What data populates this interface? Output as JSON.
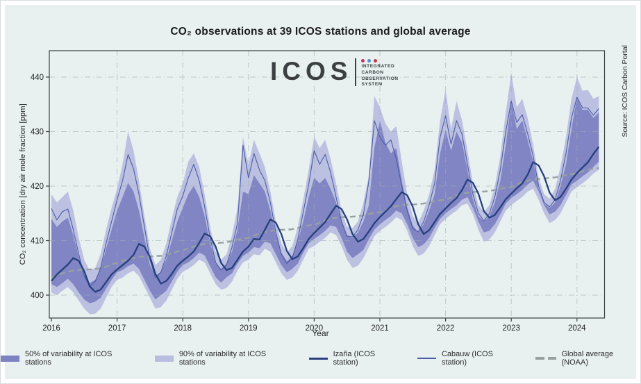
{
  "page": {
    "source_note": "Source: ICOS Carbon Portal"
  },
  "logo": {
    "text": "ICOS",
    "subtitle": "INTEGRATED CARBON OBSERVATION SYSTEM",
    "dots": [
      "#c6326e",
      "#4e8fca",
      "#c23a41"
    ]
  },
  "colors": {
    "panel_bg": "#e8f0f0",
    "grid": "#9fadb0",
    "plot_border": "#3a3f42",
    "tick_text": "#1f1f1f"
  },
  "chart_data": {
    "type": "line",
    "title": "CO₂ observations at 39 ICOS stations and global average",
    "xlabel": "Year",
    "ylabel": "CO₂ concentration [dry air mole fraction [ppm]",
    "x_start_year": 2016,
    "x_interval": "monthly",
    "n_points": 101,
    "x_ticks": [
      2016,
      2017,
      2018,
      2019,
      2020,
      2021,
      2022,
      2023,
      2024
    ],
    "y_ticks": [
      400,
      410,
      420,
      430,
      440
    ],
    "xlim": [
      2015.97,
      2024.42
    ],
    "ylim": [
      395.8,
      444.8
    ],
    "grid": true,
    "legend_position": "bottom",
    "series": [
      {
        "name": "90% of variability at ICOS stations",
        "type": "band",
        "color": "#b9bedf",
        "low": [
          400.5,
          400.0,
          400.8,
          401.5,
          400.5,
          399.0,
          397.5,
          396.5,
          396.6,
          397.5,
          399.5,
          401.5,
          402.8,
          403.2,
          404.0,
          404.5,
          403.5,
          401.5,
          399.5,
          397.5,
          397.8,
          399.0,
          401.0,
          403.0,
          404.3,
          404.8,
          405.5,
          406.5,
          406.0,
          404.0,
          402.0,
          401.0,
          401.3,
          402.5,
          404.5,
          406.0,
          406.5,
          407.5,
          407.3,
          408.5,
          408.0,
          406.0,
          404.0,
          402.8,
          403.2,
          404.5,
          406.5,
          408.5,
          409.0,
          409.8,
          410.5,
          411.5,
          411.0,
          409.0,
          406.5,
          405.0,
          405.4,
          406.8,
          408.8,
          410.8,
          411.8,
          412.5,
          413.3,
          414.3,
          413.8,
          411.8,
          409.0,
          407.2,
          407.6,
          409.0,
          411.0,
          413.0,
          414.0,
          414.8,
          415.5,
          416.5,
          416.8,
          414.8,
          412.0,
          409.8,
          410.2,
          411.5,
          413.5,
          415.5,
          416.5,
          417.3,
          418.0,
          419.0,
          419.5,
          417.5,
          415.0,
          413.2,
          413.8,
          415.0,
          417.0,
          419.0,
          419.8,
          420.5,
          421.3,
          422.3,
          423.0
        ],
        "high": [
          418.5,
          417.0,
          418.0,
          419.0,
          415.5,
          410.5,
          406.5,
          404.5,
          405.0,
          407.5,
          412.0,
          416.0,
          419.5,
          424.0,
          430.0,
          426.5,
          421.0,
          414.5,
          408.5,
          405.5,
          406.5,
          409.5,
          414.0,
          418.0,
          420.5,
          424.5,
          426.0,
          423.5,
          418.5,
          412.5,
          408.0,
          406.5,
          407.5,
          411.0,
          416.0,
          429.0,
          424.0,
          428.5,
          426.0,
          423.5,
          419.0,
          413.5,
          409.5,
          407.8,
          409.0,
          412.5,
          417.5,
          423.0,
          429.0,
          427.0,
          428.5,
          425.0,
          420.5,
          415.5,
          412.5,
          412.3,
          413.5,
          417.0,
          422.0,
          436.5,
          434.5,
          431.5,
          430.0,
          431.0,
          424.5,
          418.5,
          414.5,
          413.3,
          415.5,
          418.5,
          423.0,
          432.0,
          437.7,
          430.5,
          435.6,
          432.0,
          426.5,
          420.5,
          416.5,
          415.3,
          416.5,
          420.0,
          425.5,
          433.5,
          440.7,
          434.5,
          436.0,
          432.5,
          427.5,
          421.5,
          418.5,
          417.7,
          419.5,
          423.5,
          429.0,
          436.0,
          440.0,
          437.5,
          437.6,
          436.0,
          436.5
        ]
      },
      {
        "name": "50% of variability at ICOS stations",
        "type": "band",
        "color": "#7d82c2",
        "low": [
          402.0,
          401.5,
          402.2,
          403.0,
          402.0,
          400.5,
          399.2,
          398.5,
          398.8,
          399.5,
          401.2,
          402.8,
          404.2,
          404.6,
          405.3,
          405.8,
          404.8,
          402.8,
          400.8,
          399.2,
          400.0,
          400.8,
          402.5,
          404.3,
          405.5,
          406.0,
          406.8,
          407.8,
          407.3,
          405.3,
          403.3,
          402.3,
          403.3,
          404.0,
          405.8,
          407.2,
          407.8,
          408.8,
          408.6,
          409.8,
          409.5,
          407.5,
          405.5,
          404.2,
          404.8,
          405.8,
          407.8,
          409.5,
          410.3,
          411.0,
          411.8,
          412.8,
          412.5,
          410.5,
          408.0,
          406.8,
          407.5,
          408.3,
          410.3,
          412.0,
          413.0,
          413.8,
          414.5,
          415.5,
          415.0,
          413.0,
          410.5,
          408.8,
          409.3,
          410.5,
          412.3,
          414.0,
          415.0,
          415.8,
          416.5,
          417.5,
          418.0,
          416.0,
          413.5,
          411.5,
          411.8,
          413.0,
          414.8,
          416.8,
          417.8,
          418.5,
          419.3,
          420.3,
          421.0,
          419.0,
          416.5,
          414.8,
          415.3,
          416.5,
          418.3,
          420.3,
          421.0,
          421.8,
          422.5,
          423.5,
          424.5
        ],
        "high": [
          414.0,
          412.5,
          413.5,
          414.2,
          411.0,
          407.0,
          403.8,
          402.2,
          402.8,
          404.8,
          408.5,
          412.0,
          415.5,
          418.0,
          420.6,
          419.0,
          415.5,
          410.5,
          405.5,
          403.5,
          404.3,
          406.5,
          410.0,
          413.5,
          416.0,
          418.5,
          420.0,
          418.0,
          414.5,
          409.5,
          405.8,
          404.8,
          405.8,
          408.0,
          412.0,
          419.0,
          418.5,
          422.0,
          420.5,
          419.0,
          415.5,
          411.0,
          407.8,
          406.2,
          407.2,
          409.8,
          413.5,
          418.0,
          421.5,
          420.5,
          421.5,
          419.5,
          417.0,
          413.5,
          411.0,
          410.5,
          411.5,
          413.5,
          416.5,
          427.0,
          432.0,
          428.0,
          426.0,
          427.0,
          421.0,
          416.0,
          412.8,
          411.5,
          413.0,
          415.5,
          418.5,
          426.0,
          430.3,
          426.5,
          430.0,
          428.0,
          423.0,
          417.5,
          414.5,
          413.5,
          414.5,
          417.0,
          421.0,
          427.5,
          435.3,
          430.5,
          432.0,
          428.5,
          424.5,
          419.5,
          416.8,
          416.0,
          417.0,
          420.0,
          424.0,
          430.5,
          436.2,
          434.0,
          434.0,
          432.5,
          433.5
        ]
      },
      {
        "name": "Global average (NOAA)",
        "type": "line",
        "style": "dashed",
        "color": "#97a1a1",
        "width": 2.4,
        "values": [
          403.2,
          403.6,
          404.0,
          404.3,
          404.5,
          404.6,
          404.7,
          404.7,
          404.8,
          404.9,
          405.2,
          405.6,
          405.9,
          406.3,
          406.6,
          406.8,
          407.0,
          407.1,
          407.1,
          407.2,
          407.2,
          407.4,
          407.7,
          408.0,
          408.2,
          408.6,
          408.9,
          409.2,
          409.4,
          409.5,
          409.5,
          409.6,
          409.7,
          409.9,
          410.2,
          410.4,
          410.5,
          410.9,
          411.3,
          411.6,
          411.8,
          411.9,
          412.0,
          412.0,
          412.1,
          412.3,
          412.6,
          412.8,
          412.9,
          413.3,
          413.7,
          414.0,
          414.2,
          414.3,
          414.3,
          414.4,
          414.5,
          414.6,
          414.9,
          415.1,
          415.2,
          415.6,
          416.0,
          416.3,
          416.5,
          416.6,
          416.6,
          416.7,
          416.8,
          417.0,
          417.2,
          417.4,
          417.5,
          417.9,
          418.3,
          418.6,
          418.8,
          418.9,
          419.0,
          419.0,
          419.1,
          419.3,
          419.5,
          419.7,
          419.8,
          420.3,
          420.7,
          421.0,
          421.2,
          421.3,
          421.4,
          421.5,
          421.6,
          421.8,
          422.0,
          422.2,
          422.3,
          422.7,
          423.0,
          423.2,
          423.3
        ]
      },
      {
        "name": "Cabauw (ICOS station)",
        "type": "line",
        "style": "solid",
        "color": "#4a5ca6",
        "width": 1.1,
        "values": [
          415.9,
          413.8,
          415.3,
          415.8,
          412.0,
          407.5,
          403.5,
          401.6,
          402.5,
          405.0,
          409.5,
          413.5,
          417.5,
          421.0,
          425.8,
          423.2,
          418.5,
          412.5,
          406.5,
          403.2,
          404.2,
          407.2,
          411.5,
          415.8,
          418.2,
          421.5,
          424.0,
          421.0,
          416.2,
          410.5,
          406.0,
          404.6,
          405.6,
          408.8,
          413.2,
          427.5,
          421.5,
          426.0,
          423.0,
          421.0,
          417.0,
          411.5,
          407.5,
          405.8,
          406.8,
          410.2,
          415.2,
          420.3,
          426.5,
          424.0,
          425.8,
          422.5,
          418.0,
          413.5,
          410.8,
          410.7,
          412.0,
          414.8,
          421.0,
          432.0,
          429.0,
          427.5,
          428.5,
          425.0,
          420.0,
          415.5,
          412.2,
          411.6,
          413.5,
          416.5,
          420.5,
          429.0,
          432.9,
          427.7,
          432.0,
          429.5,
          424.0,
          418.5,
          415.0,
          413.6,
          415.0,
          418.0,
          423.0,
          430.0,
          435.6,
          431.7,
          433.1,
          429.6,
          425.5,
          420.0,
          417.0,
          416.2,
          417.5,
          421.0,
          426.0,
          432.5,
          436.3,
          434.4,
          434.3,
          433.0,
          434.2
        ]
      },
      {
        "name": "Izaña (ICOS station)",
        "type": "line",
        "style": "solid",
        "color": "#25407d",
        "width": 2.3,
        "values": [
          402.6,
          403.8,
          404.7,
          405.6,
          406.8,
          406.3,
          404.4,
          401.6,
          400.6,
          401.0,
          402.4,
          403.8,
          404.7,
          405.5,
          406.3,
          407.4,
          409.4,
          408.9,
          407.0,
          403.9,
          402.1,
          402.6,
          403.9,
          405.4,
          406.3,
          407.1,
          408.0,
          409.6,
          411.3,
          410.8,
          408.9,
          405.9,
          404.6,
          405.0,
          406.5,
          408.0,
          408.9,
          410.3,
          410.2,
          412.0,
          413.9,
          413.3,
          411.2,
          408.1,
          406.6,
          407.1,
          408.6,
          410.3,
          411.4,
          412.4,
          413.4,
          414.9,
          416.4,
          415.8,
          413.9,
          411.2,
          409.8,
          410.3,
          411.7,
          413.2,
          414.3,
          415.3,
          416.3,
          417.6,
          418.9,
          418.3,
          416.2,
          413.0,
          411.2,
          411.9,
          413.4,
          414.9,
          415.9,
          416.9,
          417.8,
          419.3,
          421.2,
          420.6,
          418.6,
          415.4,
          414.2,
          414.7,
          416.1,
          417.6,
          418.6,
          419.6,
          420.5,
          422.1,
          424.4,
          423.8,
          421.8,
          418.8,
          417.4,
          418.0,
          419.5,
          421.2,
          422.4,
          423.4,
          424.4,
          425.9,
          427.2
        ]
      }
    ],
    "legend": [
      {
        "label": "50% of variability at ICOS stations",
        "swatch": "band",
        "color": "#7d82c2"
      },
      {
        "label": "90% of variability at ICOS stations",
        "swatch": "band",
        "color": "#b9bedf"
      },
      {
        "label": "Izaña (ICOS station)",
        "swatch": "line-thick",
        "color": "#25407d"
      },
      {
        "label": "Cabauw (ICOS station)",
        "swatch": "line-thin",
        "color": "#4a5ca6"
      },
      {
        "label": "Global average (NOAA)",
        "swatch": "line-dashed",
        "color": "#97a1a1"
      }
    ]
  }
}
